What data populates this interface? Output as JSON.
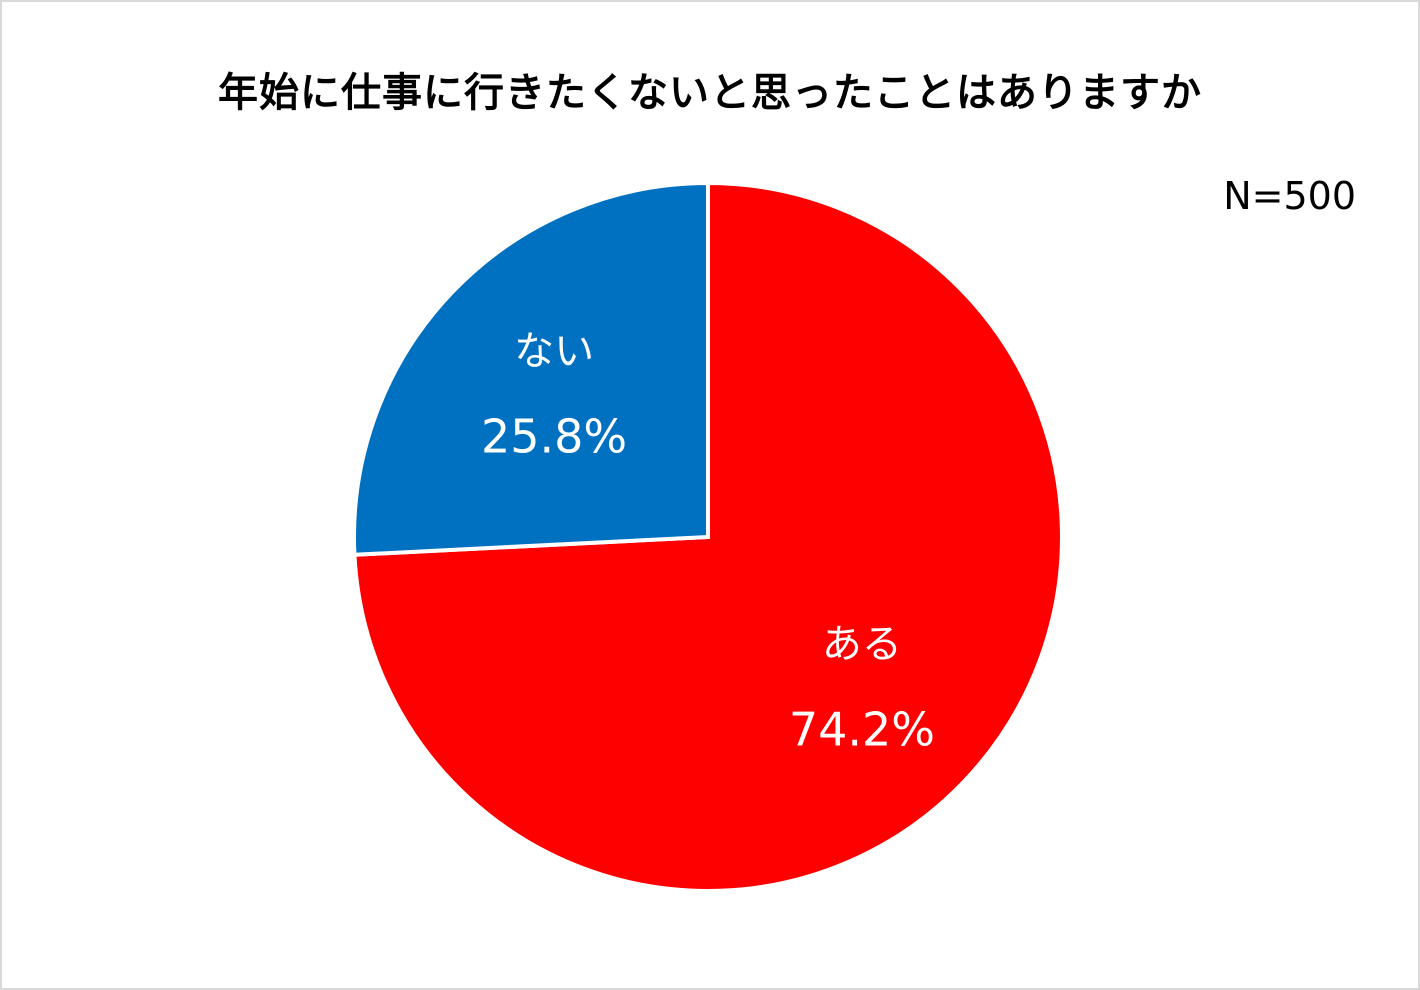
{
  "chart_data": {
    "type": "pie",
    "title": "年始に仕事に行きたくないと思ったことはありますか",
    "annotation": "N=500",
    "slices": [
      {
        "label": "ある",
        "value": 74.2,
        "display": "74.2%",
        "color": "#ff0000"
      },
      {
        "label": "ない",
        "value": 25.8,
        "display": "25.8%",
        "color": "#0070c0"
      }
    ],
    "start": "12 o'clock",
    "direction": "clockwise",
    "legend": "none",
    "labels": "inside slices"
  }
}
